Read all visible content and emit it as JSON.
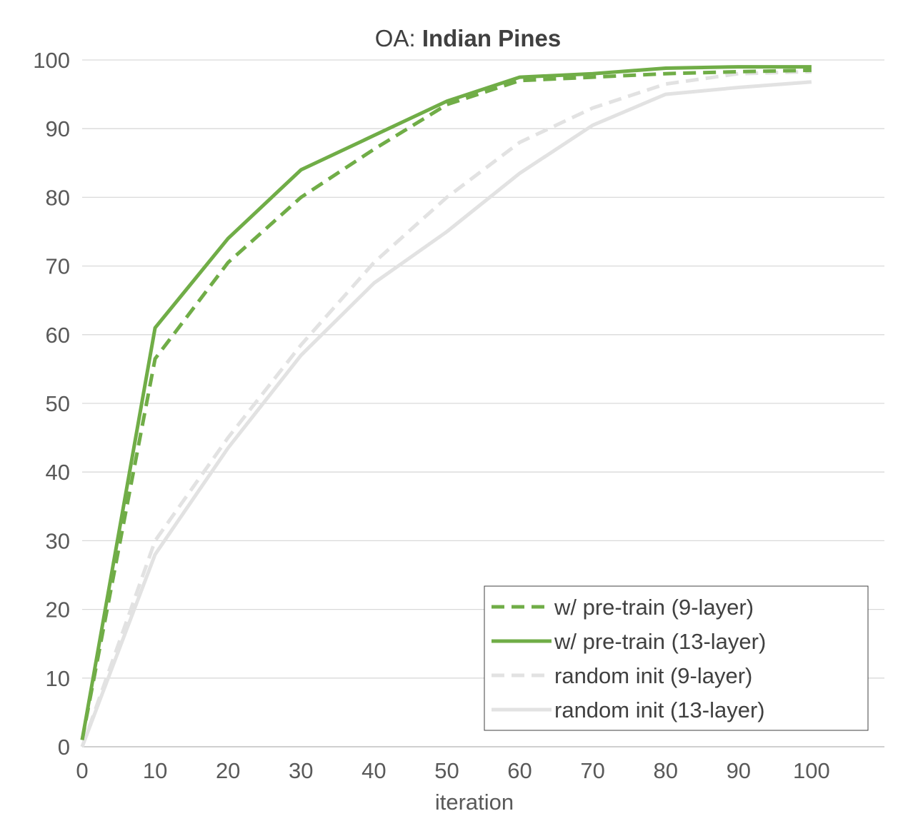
{
  "chart_data": {
    "type": "line",
    "title_prefix": "OA: ",
    "title_bold": "Indian Pines",
    "xlabel": "iteration",
    "ylabel": "",
    "xlim": [
      0,
      110
    ],
    "ylim": [
      0,
      100
    ],
    "x_ticks": [
      0,
      10,
      20,
      30,
      40,
      50,
      60,
      70,
      80,
      90,
      100
    ],
    "y_ticks": [
      0,
      10,
      20,
      30,
      40,
      50,
      60,
      70,
      80,
      90,
      100
    ],
    "grid": "horizontal",
    "legend_position": "bottom-right",
    "series": [
      {
        "name": "w/ pre-train (9-layer)",
        "color": "#70ad47",
        "style": "dashed",
        "x": [
          0,
          10,
          20,
          30,
          40,
          50,
          60,
          70,
          80,
          90,
          100
        ],
        "y": [
          1,
          56.5,
          70.5,
          80,
          87,
          93.5,
          97,
          97.5,
          98,
          98.3,
          98.5
        ]
      },
      {
        "name": "w/ pre-train (13-layer)",
        "color": "#70ad47",
        "style": "solid",
        "x": [
          0,
          10,
          20,
          30,
          40,
          50,
          60,
          70,
          80,
          90,
          100
        ],
        "y": [
          1,
          61,
          74,
          84,
          89,
          94,
          97.5,
          98,
          98.8,
          99,
          99
        ]
      },
      {
        "name": "random init (9-layer)",
        "color": "#e2e2e2",
        "style": "dashed",
        "x": [
          0,
          10,
          20,
          30,
          40,
          50,
          60,
          70,
          80,
          90,
          100
        ],
        "y": [
          0,
          30,
          45,
          58.5,
          70.5,
          80,
          88,
          93,
          96.5,
          98,
          98.3
        ]
      },
      {
        "name": "random init (13-layer)",
        "color": "#e2e2e2",
        "style": "solid",
        "x": [
          0,
          10,
          20,
          30,
          40,
          50,
          60,
          70,
          80,
          90,
          100
        ],
        "y": [
          0,
          28,
          43.5,
          57,
          67.5,
          75,
          83.5,
          90.5,
          95,
          96,
          96.8
        ]
      }
    ]
  }
}
